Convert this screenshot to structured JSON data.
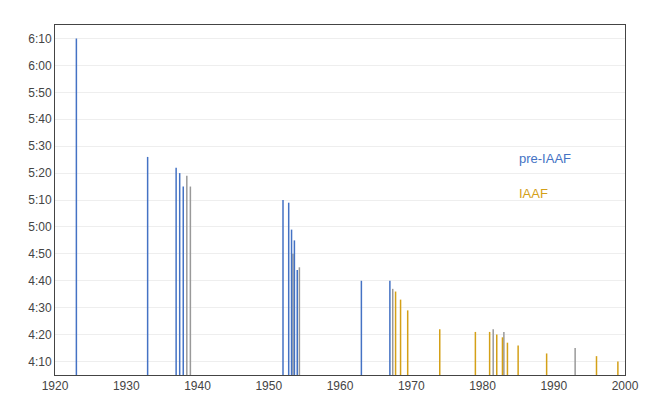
{
  "chart_data": {
    "type": "vlines",
    "xlim": [
      1920,
      2000
    ],
    "xticks": [
      1920,
      1930,
      1940,
      1950,
      1960,
      1970,
      1980,
      1990,
      2000
    ],
    "ylim": [
      245,
      375
    ],
    "yticks": [
      {
        "value": 250,
        "label": "4:10"
      },
      {
        "value": 260,
        "label": "4:20"
      },
      {
        "value": 270,
        "label": "4:30"
      },
      {
        "value": 280,
        "label": "4:40"
      },
      {
        "value": 290,
        "label": "4:50"
      },
      {
        "value": 300,
        "label": "5:00"
      },
      {
        "value": 310,
        "label": "5:10"
      },
      {
        "value": 320,
        "label": "5:20"
      },
      {
        "value": 330,
        "label": "5:30"
      },
      {
        "value": 340,
        "label": "5:40"
      },
      {
        "value": 350,
        "label": "5:50"
      },
      {
        "value": 360,
        "label": "6:00"
      },
      {
        "value": 370,
        "label": "6:10"
      }
    ],
    "grid": true,
    "series": [
      {
        "color": "#999999",
        "x": [
          1938.5,
          1939,
          1953.4,
          1954.3,
          1967.4,
          1981.5,
          1983,
          1993
        ],
        "values": [
          319,
          315,
          290,
          285,
          277,
          262,
          261,
          255
        ]
      },
      {
        "name": "pre-IAAF",
        "color": "#4472c4",
        "x": [
          1923,
          1933,
          1937,
          1937.5,
          1938,
          1952,
          1952.8,
          1953.2,
          1953.6,
          1954,
          1963,
          1967
        ],
        "values": [
          370,
          326,
          322,
          320,
          315,
          310,
          309,
          299,
          295,
          284,
          280,
          280
        ]
      },
      {
        "name": "IAAF",
        "color": "#d4a017",
        "x": [
          1967.8,
          1968.5,
          1969.5,
          1974,
          1979,
          1981,
          1982,
          1982.8,
          1983.5,
          1985,
          1989,
          1996,
          1999
        ],
        "values": [
          276,
          273,
          269,
          262,
          261,
          261,
          260,
          259,
          257,
          256,
          253,
          252,
          250
        ]
      }
    ]
  }
}
